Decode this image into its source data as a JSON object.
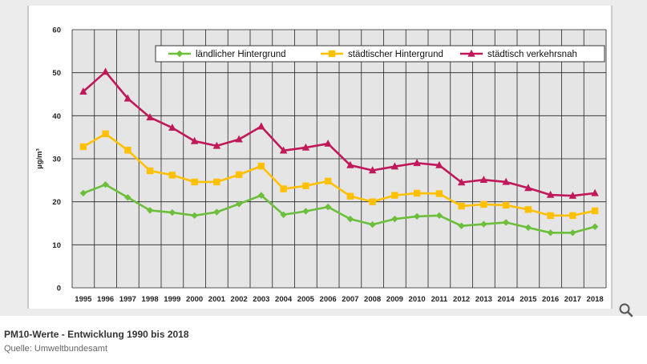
{
  "caption": {
    "title": "PM10-Werte - Entwicklung 1990 bis 2018",
    "source": "Quelle: Umweltbundesamt"
  },
  "toolbar": {
    "zoom_icon": "magnifier-icon"
  },
  "colors": {
    "green": "#6cbf3a",
    "yellow": "#ffc000",
    "red": "#c0185a",
    "plot_bg": "#e5e5e5",
    "grid": "#222222"
  },
  "chart_data": {
    "type": "line",
    "title": "",
    "xlabel": "",
    "ylabel": "µg/m³",
    "ylim": [
      0,
      60
    ],
    "yticks": [
      0,
      10,
      20,
      30,
      40,
      50,
      60
    ],
    "grid": true,
    "legend_position": "top-right",
    "categories": [
      "1995",
      "1996",
      "1997",
      "1998",
      "1999",
      "2000",
      "2001",
      "2002",
      "2003",
      "2004",
      "2005",
      "2006",
      "2007",
      "2008",
      "2009",
      "2010",
      "2011",
      "2012",
      "2013",
      "2014",
      "2015",
      "2016",
      "2017",
      "2018"
    ],
    "series": [
      {
        "name": "ländlicher Hintergrund",
        "color": "#6cbf3a",
        "marker": "diamond",
        "values": [
          22,
          24,
          21,
          18,
          17.5,
          16.8,
          17.6,
          19.5,
          21.5,
          17,
          17.8,
          18.8,
          16,
          14.7,
          16,
          16.6,
          16.8,
          14.4,
          14.8,
          15.2,
          14,
          12.8,
          12.8,
          14.2
        ]
      },
      {
        "name": "städtischer Hintergrund",
        "color": "#ffc000",
        "marker": "square",
        "values": [
          32.8,
          35.8,
          32,
          27.2,
          26.2,
          24.6,
          24.6,
          26.3,
          28.3,
          23,
          23.7,
          24.8,
          21.3,
          20,
          21.5,
          22,
          21.9,
          19,
          19.4,
          19.2,
          18.2,
          16.8,
          16.8,
          17.9
        ]
      },
      {
        "name": "städtisch verkehrsnah",
        "color": "#c0185a",
        "marker": "triangle",
        "values": [
          45.6,
          50.2,
          44,
          39.6,
          37.2,
          34.1,
          33,
          34.5,
          37.5,
          31.9,
          32.6,
          33.5,
          28.5,
          27.3,
          28.2,
          29,
          28.5,
          24.5,
          25.1,
          24.6,
          23.2,
          21.6,
          21.4,
          22
        ]
      }
    ]
  }
}
